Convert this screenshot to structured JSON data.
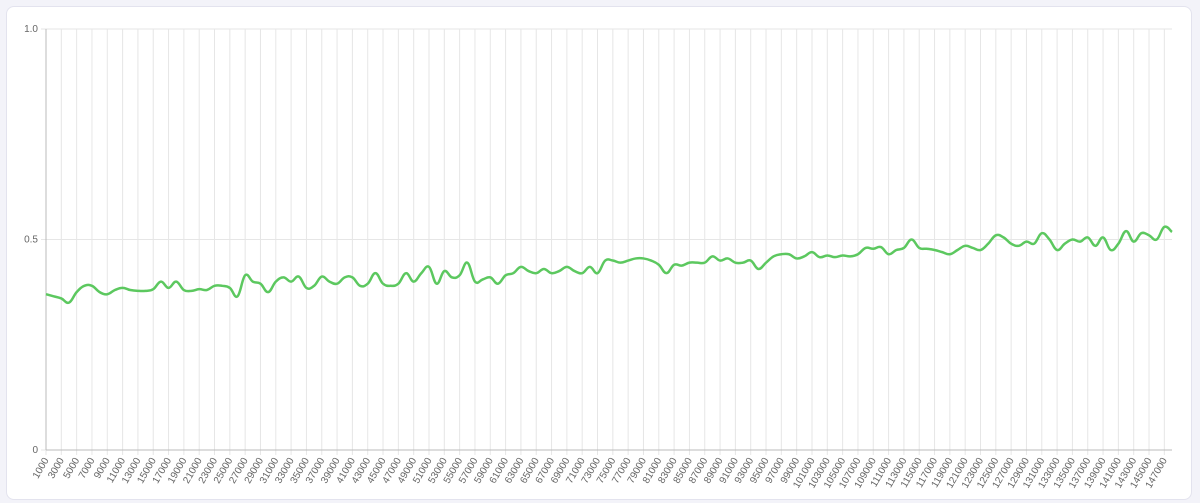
{
  "chart_data": {
    "type": "line",
    "categories": [
      1000,
      null,
      3000,
      null,
      5000,
      null,
      7000,
      null,
      9000,
      null,
      11000,
      null,
      13000,
      null,
      15000,
      null,
      17000,
      null,
      19000,
      null,
      21000,
      null,
      23000,
      null,
      25000,
      null,
      27000,
      null,
      29000,
      null,
      31000,
      null,
      33000,
      null,
      35000,
      null,
      37000,
      null,
      39000,
      null,
      41000,
      null,
      43000,
      null,
      45000,
      null,
      47000,
      null,
      49000,
      null,
      51000,
      null,
      53000,
      null,
      55000,
      null,
      57000,
      null,
      59000,
      null,
      61000,
      null,
      63000,
      null,
      65000,
      null,
      67000,
      null,
      69000,
      null,
      71000,
      null,
      73000,
      null,
      75000,
      null,
      77000,
      null,
      79000,
      null,
      81000,
      null,
      83000,
      null,
      85000,
      null,
      87000,
      null,
      89000,
      null,
      91000,
      null,
      93000,
      null,
      95000,
      null,
      97000,
      null,
      99000,
      null,
      101000,
      null,
      103000,
      null,
      105000,
      null,
      107000,
      null,
      109000,
      null,
      111000,
      null,
      113000,
      null,
      115000,
      null,
      117000,
      null,
      119000,
      null,
      121000,
      null,
      123000,
      null,
      125000,
      null,
      127000,
      null,
      129000,
      null,
      131000,
      null,
      133000,
      null,
      135000,
      null,
      137000,
      null,
      139000,
      null,
      141000,
      null,
      143000,
      null,
      145000,
      null,
      147000,
      null
    ],
    "series": [
      {
        "color": "#5cc85f",
        "values": [
          0.37,
          0.365,
          0.36,
          0.35,
          0.375,
          0.39,
          0.39,
          0.375,
          0.37,
          0.38,
          0.385,
          0.38,
          0.378,
          0.378,
          0.382,
          0.4,
          0.385,
          0.4,
          0.38,
          0.378,
          0.382,
          0.38,
          0.39,
          0.39,
          0.385,
          0.365,
          0.415,
          0.4,
          0.395,
          0.375,
          0.4,
          0.41,
          0.4,
          0.412,
          0.385,
          0.39,
          0.412,
          0.4,
          0.395,
          0.41,
          0.41,
          0.39,
          0.395,
          0.42,
          0.395,
          0.39,
          0.395,
          0.42,
          0.4,
          0.42,
          0.435,
          0.395,
          0.425,
          0.41,
          0.415,
          0.445,
          0.4,
          0.405,
          0.41,
          0.395,
          0.415,
          0.42,
          0.435,
          0.425,
          0.42,
          0.43,
          0.42,
          0.425,
          0.435,
          0.425,
          0.42,
          0.435,
          0.42,
          0.45,
          0.45,
          0.445,
          0.45,
          0.455,
          0.455,
          0.45,
          0.44,
          0.42,
          0.44,
          0.438,
          0.445,
          0.445,
          0.445,
          0.46,
          0.45,
          0.455,
          0.445,
          0.445,
          0.45,
          0.43,
          0.445,
          0.46,
          0.465,
          0.465,
          0.455,
          0.46,
          0.47,
          0.458,
          0.462,
          0.458,
          0.462,
          0.46,
          0.465,
          0.48,
          0.478,
          0.482,
          0.465,
          0.475,
          0.48,
          0.5,
          0.48,
          0.478,
          0.475,
          0.47,
          0.465,
          0.475,
          0.485,
          0.48,
          0.475,
          0.49,
          0.51,
          0.505,
          0.49,
          0.485,
          0.495,
          0.49,
          0.515,
          0.5,
          0.475,
          0.49,
          0.5,
          0.495,
          0.505,
          0.485,
          0.505,
          0.475,
          0.49,
          0.52,
          0.495,
          0.515,
          0.51,
          0.5,
          0.53,
          0.518
        ]
      }
    ],
    "ylim": [
      0,
      1
    ],
    "yticks": [
      0,
      0.5,
      {
        "value": 1,
        "label": "1.0"
      }
    ],
    "grid": true
  }
}
